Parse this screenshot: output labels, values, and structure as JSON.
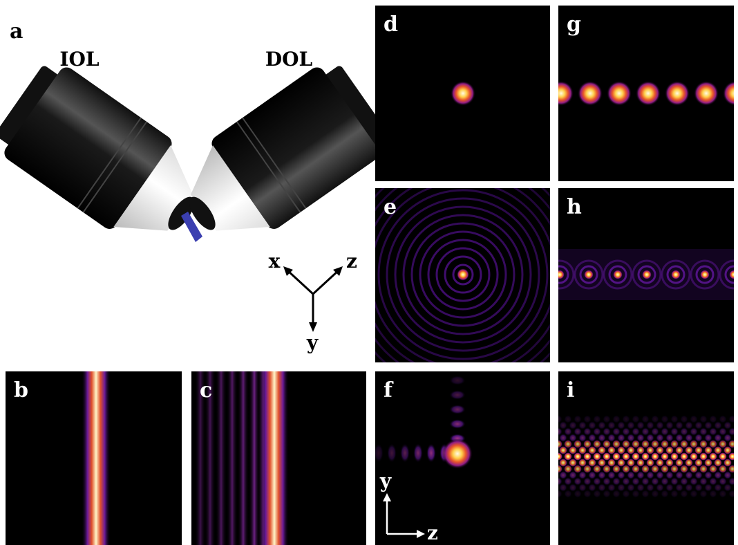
{
  "panels": [
    "a",
    "b",
    "c",
    "d",
    "e",
    "f",
    "g",
    "h",
    "i"
  ],
  "objectives": {
    "left": "IOL",
    "right": "DOL"
  },
  "axes_3d": {
    "x": "x",
    "z": "z",
    "y": "y"
  },
  "axes_2d": {
    "y": "y",
    "z": "z"
  }
}
